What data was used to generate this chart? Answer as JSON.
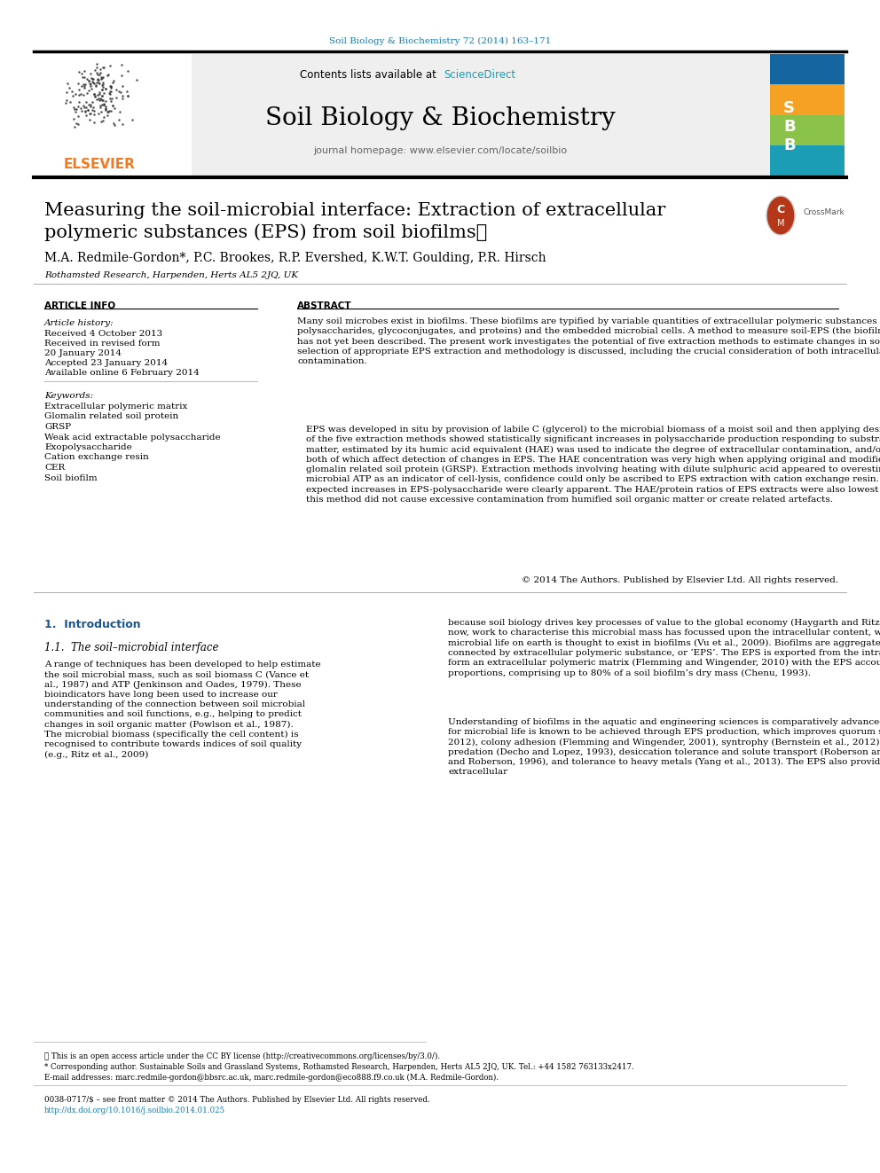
{
  "page_bg": "#ffffff",
  "journal_ref_color": "#1a7aad",
  "journal_ref_text": "Soil Biology & Biochemistry 72 (2014) 163–171",
  "sciencedirect_link_color": "#1a9db5",
  "journal_name": "Soil Biology & Biochemistry",
  "journal_homepage": "journal homepage: www.elsevier.com/locate/soilbio",
  "header_bg": "#efefef",
  "elsevier_orange": "#f47920",
  "title_line1": "Measuring the soil-microbial interface: Extraction of extracellular",
  "title_line2": "polymeric substances (EPS) from soil biofilms★",
  "authors": "M.A. Redmile-Gordon*, P.C. Brookes, R.P. Evershed, K.W.T. Goulding, P.R. Hirsch",
  "affiliation": "Rothamsted Research, Harpenden, Herts AL5 2JQ, UK",
  "article_info_label": "ARTICLE INFO",
  "abstract_label": "ABSTRACT",
  "article_history_label": "Article history:",
  "received1": "Received 4 October 2013",
  "received_revised": "Received in revised form",
  "date_revised": "20 January 2014",
  "accepted": "Accepted 23 January 2014",
  "available": "Available online 6 February 2014",
  "keywords_label": "Keywords:",
  "keywords": [
    "Extracellular polymeric matrix",
    "Glomalin related soil protein",
    "GRSP",
    "Weak acid extractable polysaccharide",
    "Exopolysaccharide",
    "Cation exchange resin",
    "CER",
    "Soil biofilm"
  ],
  "abstract_para1": "Many soil microbes exist in biofilms. These biofilms are typified by variable quantities of extracellular polymeric substances (EPS; predominantly polysaccharides, glycoconjugates, and proteins) and the embedded microbial cells. A method to measure soil-EPS (the biofilm exclusive of microbial cells) has not yet been described. The present work investigates the potential of five extraction methods to estimate changes in soil-EPS content. A rationale for selection of appropriate EPS extraction and methodology is discussed, including the crucial consideration of both intracellular and extracellular contamination.",
  "abstract_para2": "EPS was developed in situ by provision of labile C (glycerol) to the microbial biomass of a moist soil and then applying desiccation stress. Only two out of the five extraction methods showed statistically significant increases in polysaccharide production responding to substrate addition. Humified organic matter, estimated by its humic acid equivalent (HAE) was used to indicate the degree of extracellular contamination, and/or creation of humic artefacts – both of which affect detection of changes in EPS. The HAE concentration was very high when applying original and modified methods designed to extract glomalin related soil protein (GRSP). Extraction methods involving heating with dilute sulphuric acid appeared to overestimate EPS-polysaccharide. Using microbial ATP as an indicator of cell-lysis, confidence could only be ascribed to EPS extraction with cation exchange resin. Using this method, the expected increases in EPS-polysaccharide were clearly apparent. The HAE/protein ratios of EPS extracts were also lowest with cation exchange – indicating this method did not cause excessive contamination from humified soil organic matter or create related artefacts.",
  "abstract_copyright": "© 2014 The Authors. Published by Elsevier Ltd. All rights reserved.",
  "intro_section": "1.  Introduction",
  "section_11": "1.1.  The soil–microbial interface",
  "intro_text_left": "A range of techniques has been developed to help estimate the soil microbial mass, such as soil biomass C (Vance et al., 1987) and ATP (Jenkinson and Oades, 1979). These bioindicators have long been used to increase our understanding of the connection between soil microbial communities and soil functions, e.g., helping to predict changes in soil organic matter (Powlson et al., 1987). The microbial biomass (specifically the cell content) is recognised to contribute towards indices of soil quality (e.g., Ritz et al., 2009)",
  "intro_text_right": "because soil biology drives key processes of value to the global economy (Haygarth and Ritz, 2009). However, until now, work to characterise this microbial mass has focussed upon the intracellular content, whereas over 99% of microbial life on earth is thought to exist in biofilms (Vu et al., 2009). Biofilms are aggregates of microbes connected by extracellular polymeric substance, or ‘EPS’. The EPS is exported from the intracellular space, to form an extracellular polymeric matrix (Flemming and Wingender, 2010) with the EPS accounting for variable proportions, comprising up to 80% of a soil biofilm’s dry mass (Chenu, 1993).",
  "intro_text_right2": "Understanding of biofilms in the aquatic and engineering sciences is comparatively advanced. Competitive advantage for microbial life is known to be achieved through EPS production, which improves quorum sensing (Elias and Banin, 2012), colony adhesion (Flemming and Wingender, 2001), syntrophy (Bernstein et al., 2012), defence against predation (Decho and Lopez, 1993), desiccation tolerance and solute transport (Roberson and Firestone, 1992; Chenu and Roberson, 1996), and tolerance to heavy metals (Yang et al., 2013). The EPS also provides a template for extracellular",
  "footer_note": "★ This is an open access article under the CC BY license (http://creativecommons.org/licenses/by/3.0/).",
  "footer_corresponding": "* Corresponding author. Sustainable Soils and Grassland Systems, Rothamsted Research, Harpenden, Herts AL5 2JQ, UK. Tel.: +44 1582 763133x2417.",
  "footer_email": "E-mail addresses: marc.redmile-gordon@bbsrc.ac.uk, marc.redmile-gordon@eco888.f9.co.uk (M.A. Redmile-Gordon).",
  "footer_issn": "0038-0717/$ – see front matter © 2014 The Authors. Published by Elsevier Ltd. All rights reserved.",
  "footer_doi": "http://dx.doi.org/10.1016/j.soilbio.2014.01.025"
}
